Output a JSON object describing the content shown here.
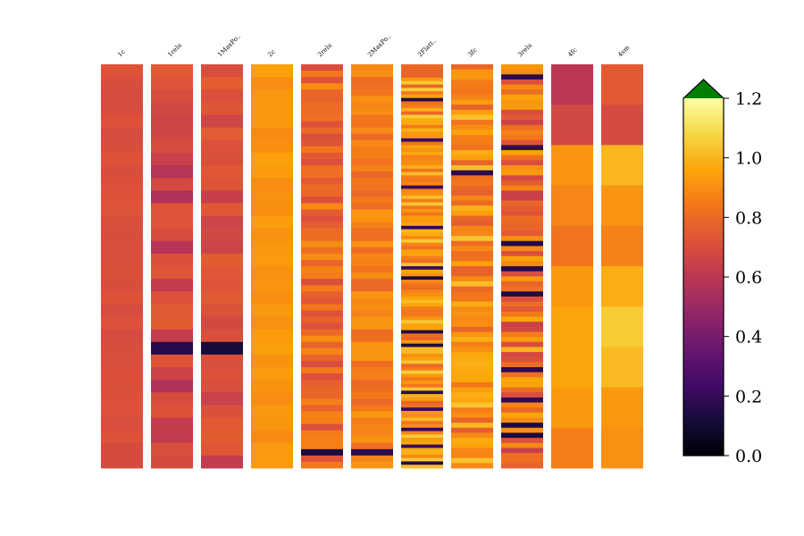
{
  "chart_data": {
    "type": "heatmap",
    "title": "",
    "xlabel": "",
    "ylabel": "",
    "columns": [
      {
        "name": "1c",
        "rows": 32,
        "seed": 11,
        "base": 0.71,
        "spread": 0.02,
        "dark_rows": []
      },
      {
        "name": "1relu",
        "rows": 32,
        "seed": 23,
        "base": 0.66,
        "spread": 0.1,
        "dark_rows": [
          22
        ]
      },
      {
        "name": "1MaxPo..",
        "rows": 32,
        "seed": 37,
        "base": 0.68,
        "spread": 0.08,
        "dark_rows": [
          22
        ]
      },
      {
        "name": "2c",
        "rows": 32,
        "seed": 41,
        "base": 0.92,
        "spread": 0.03,
        "dark_rows": []
      },
      {
        "name": "2relu",
        "rows": 64,
        "seed": 53,
        "base": 0.8,
        "spread": 0.1,
        "dark_rows": [
          61
        ]
      },
      {
        "name": "2MaxPo..",
        "rows": 64,
        "seed": 67,
        "base": 0.86,
        "spread": 0.07,
        "dark_rows": [
          61
        ]
      },
      {
        "name": "2Flatt..",
        "rows": 120,
        "seed": 71,
        "base": 0.92,
        "spread": 0.14,
        "dark_rows": [
          10,
          22,
          36,
          48,
          60,
          63,
          79,
          83,
          97,
          102,
          108,
          113,
          118
        ]
      },
      {
        "name": "3fc",
        "rows": 80,
        "seed": 83,
        "base": 0.9,
        "spread": 0.14,
        "dark_rows": [
          21
        ]
      },
      {
        "name": "3relu",
        "rows": 80,
        "seed": 97,
        "base": 0.82,
        "spread": 0.18,
        "dark_rows": [
          2,
          16,
          35,
          40,
          45,
          60,
          66,
          71,
          73
        ]
      },
      {
        "name": "4fc",
        "rows": 10,
        "values": [
          0.6,
          0.68,
          0.92,
          0.88,
          0.83,
          0.93,
          0.96,
          0.96,
          0.93,
          0.86
        ]
      },
      {
        "name": "4sm",
        "rows": 10,
        "values": [
          0.75,
          0.69,
          1.0,
          0.92,
          0.87,
          0.98,
          1.05,
          1.01,
          0.93,
          0.91
        ]
      }
    ],
    "colorbar": {
      "colormap": "inferno",
      "range": [
        0,
        1.2
      ],
      "ticks": [
        "0.0",
        "0.2",
        "0.4",
        "0.6",
        "0.8",
        "1.0",
        "1.2"
      ],
      "extend": "max",
      "over_color": "#008000"
    }
  }
}
